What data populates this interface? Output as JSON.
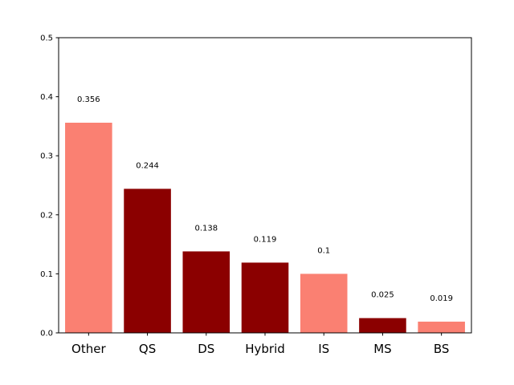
{
  "chart_data": {
    "type": "bar",
    "categories": [
      "Other",
      "QS",
      "DS",
      "Hybrid",
      "IS",
      "MS",
      "BS"
    ],
    "values": [
      0.356,
      0.244,
      0.138,
      0.119,
      0.1,
      0.025,
      0.019
    ],
    "data_labels": [
      "0.356",
      "0.244",
      "0.138",
      "0.119",
      "0.1",
      "0.025",
      "0.019"
    ],
    "bar_colors": [
      "#fa8072",
      "#8b0000",
      "#8b0000",
      "#8b0000",
      "#fa8072",
      "#8b0000",
      "#fa8072"
    ],
    "title": "",
    "xlabel": "",
    "ylabel": "",
    "ylim": [
      0,
      0.5
    ],
    "yticks": [
      0.0,
      0.1,
      0.2,
      0.3,
      0.4,
      0.5
    ],
    "ytick_labels": [
      "0.0",
      "0.1",
      "0.2",
      "0.3",
      "0.4",
      "0.5"
    ],
    "grid": false,
    "legend": "none"
  }
}
